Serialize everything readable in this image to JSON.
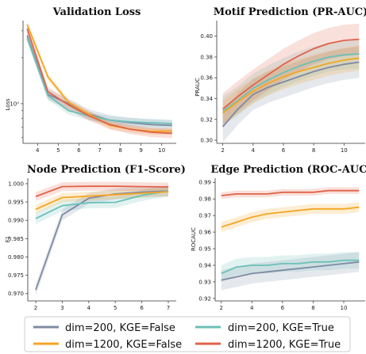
{
  "colors": {
    "dim200_false": "#7f8aa3",
    "dim1200_false": "#f5a623",
    "dim200_true": "#6cc0b8",
    "dim1200_true": "#e0634a"
  },
  "legend": {
    "placement": "bottom",
    "entries": [
      {
        "label": "dim=200, KGE=False",
        "color": "#7f8aa3"
      },
      {
        "label": "dim=200, KGE=True",
        "color": "#6cc0b8"
      },
      {
        "label": "dim=1200, KGE=False",
        "color": "#f5a623"
      },
      {
        "label": "dim=1200, KGE=True",
        "color": "#e0634a"
      }
    ]
  },
  "chart_data": [
    {
      "type": "line",
      "title": "Validation Loss",
      "xlabel": "",
      "ylabel": "Loss",
      "yscale": "log",
      "xlim": [
        3.3,
        10.7
      ],
      "ylim": [
        0.55,
        3.5
      ],
      "xticks": [
        4,
        5,
        6,
        7,
        8,
        9,
        10
      ],
      "yticks": [
        {
          "value": 1,
          "label": "10⁰"
        }
      ],
      "x": [
        3.5,
        4.5,
        5.5,
        6.5,
        7.5,
        8.5,
        9.5,
        10.5
      ],
      "series": [
        {
          "key": "dim200_false",
          "values": [
            2.8,
            1.15,
            1.0,
            0.85,
            0.78,
            0.75,
            0.73,
            0.72
          ],
          "band": 0.08
        },
        {
          "key": "dim200_true",
          "values": [
            2.7,
            1.13,
            0.9,
            0.83,
            0.78,
            0.76,
            0.75,
            0.74
          ],
          "band": 0.06
        },
        {
          "key": "dim1200_false",
          "values": [
            3.3,
            1.5,
            1.02,
            0.85,
            0.72,
            0.68,
            0.66,
            0.66
          ],
          "band": 0.05
        },
        {
          "key": "dim1200_true",
          "values": [
            3.1,
            1.2,
            0.98,
            0.83,
            0.73,
            0.68,
            0.65,
            0.64
          ],
          "band": 0.07
        }
      ]
    },
    {
      "type": "line",
      "title": "Motif Prediction (PR-AUC)",
      "xlabel": "",
      "ylabel": "PRAUC",
      "xlim": [
        1.6,
        11.4
      ],
      "ylim": [
        0.297,
        0.415
      ],
      "xticks": [
        2,
        4,
        6,
        8,
        10
      ],
      "yticks": [
        {
          "value": 0.3,
          "label": "0.30"
        },
        {
          "value": 0.32,
          "label": "0.32"
        },
        {
          "value": 0.34,
          "label": "0.34"
        },
        {
          "value": 0.36,
          "label": "0.36"
        },
        {
          "value": 0.38,
          "label": "0.38"
        },
        {
          "value": 0.4,
          "label": "0.40"
        }
      ],
      "x": [
        2,
        3,
        4,
        5,
        6,
        7,
        8,
        9,
        10,
        11
      ],
      "series": [
        {
          "key": "dim200_false",
          "values": [
            0.313,
            0.33,
            0.344,
            0.351,
            0.356,
            0.361,
            0.366,
            0.37,
            0.373,
            0.375
          ],
          "band": 0.015
        },
        {
          "key": "dim200_true",
          "values": [
            0.328,
            0.338,
            0.35,
            0.358,
            0.365,
            0.371,
            0.376,
            0.38,
            0.382,
            0.383
          ],
          "band": 0.014
        },
        {
          "key": "dim1200_false",
          "values": [
            0.326,
            0.337,
            0.347,
            0.355,
            0.361,
            0.366,
            0.37,
            0.374,
            0.377,
            0.379
          ],
          "band": 0.012
        },
        {
          "key": "dim1200_true",
          "values": [
            0.33,
            0.342,
            0.353,
            0.363,
            0.373,
            0.381,
            0.388,
            0.393,
            0.396,
            0.397
          ],
          "band": 0.015
        }
      ]
    },
    {
      "type": "line",
      "title": "Node Prediction (F1-Score)",
      "xlabel": "",
      "ylabel": "F1",
      "xlim": [
        1.7,
        7.3
      ],
      "ylim": [
        0.968,
        1.0015
      ],
      "xticks": [
        2,
        3,
        4,
        5,
        6,
        7
      ],
      "yticks": [
        {
          "value": 0.97,
          "label": "0.970"
        },
        {
          "value": 0.975,
          "label": "0.975"
        },
        {
          "value": 0.98,
          "label": "0.980"
        },
        {
          "value": 0.985,
          "label": "0.985"
        },
        {
          "value": 0.99,
          "label": "0.990"
        },
        {
          "value": 0.995,
          "label": "0.995"
        },
        {
          "value": 1.0,
          "label": "1.000"
        }
      ],
      "x": [
        2,
        3,
        4,
        5,
        6,
        7
      ],
      "series": [
        {
          "key": "dim200_false",
          "values": [
            0.971,
            0.9915,
            0.996,
            0.9972,
            0.9977,
            0.998
          ],
          "band": 0.0015
        },
        {
          "key": "dim200_true",
          "values": [
            0.9905,
            0.994,
            0.9948,
            0.9949,
            0.9968,
            0.998
          ],
          "band": 0.0015
        },
        {
          "key": "dim1200_false",
          "values": [
            0.993,
            0.9962,
            0.9966,
            0.997,
            0.9974,
            0.9978
          ],
          "band": 0.0012
        },
        {
          "key": "dim1200_true",
          "values": [
            0.9965,
            0.9992,
            0.9993,
            0.9993,
            0.9992,
            0.9991
          ],
          "band": 0.0012
        }
      ]
    },
    {
      "type": "line",
      "title": "Edge Prediction (ROC-AUC)",
      "xlabel": "",
      "ylabel": "ROCAUC",
      "xlim": [
        1.6,
        11.4
      ],
      "ylim": [
        0.9185,
        0.9925
      ],
      "xticks": [
        2,
        4,
        6,
        8,
        10
      ],
      "yticks": [
        {
          "value": 0.92,
          "label": "0.92"
        },
        {
          "value": 0.93,
          "label": "0.93"
        },
        {
          "value": 0.94,
          "label": "0.94"
        },
        {
          "value": 0.95,
          "label": "0.95"
        },
        {
          "value": 0.96,
          "label": "0.96"
        },
        {
          "value": 0.97,
          "label": "0.97"
        },
        {
          "value": 0.98,
          "label": "0.98"
        },
        {
          "value": 0.99,
          "label": "0.99"
        }
      ],
      "x": [
        2,
        3,
        4,
        5,
        6,
        7,
        8,
        9,
        10,
        11
      ],
      "series": [
        {
          "key": "dim200_false",
          "values": [
            0.931,
            0.933,
            0.935,
            0.936,
            0.937,
            0.938,
            0.939,
            0.94,
            0.941,
            0.942
          ],
          "band": 0.006
        },
        {
          "key": "dim200_true",
          "values": [
            0.935,
            0.939,
            0.94,
            0.94,
            0.941,
            0.941,
            0.942,
            0.942,
            0.943,
            0.943
          ],
          "band": 0.005
        },
        {
          "key": "dim1200_false",
          "values": [
            0.963,
            0.966,
            0.969,
            0.971,
            0.972,
            0.973,
            0.974,
            0.974,
            0.974,
            0.975
          ],
          "band": 0.003
        },
        {
          "key": "dim1200_true",
          "values": [
            0.982,
            0.983,
            0.983,
            0.983,
            0.984,
            0.984,
            0.984,
            0.985,
            0.985,
            0.985
          ],
          "band": 0.002
        }
      ]
    }
  ]
}
